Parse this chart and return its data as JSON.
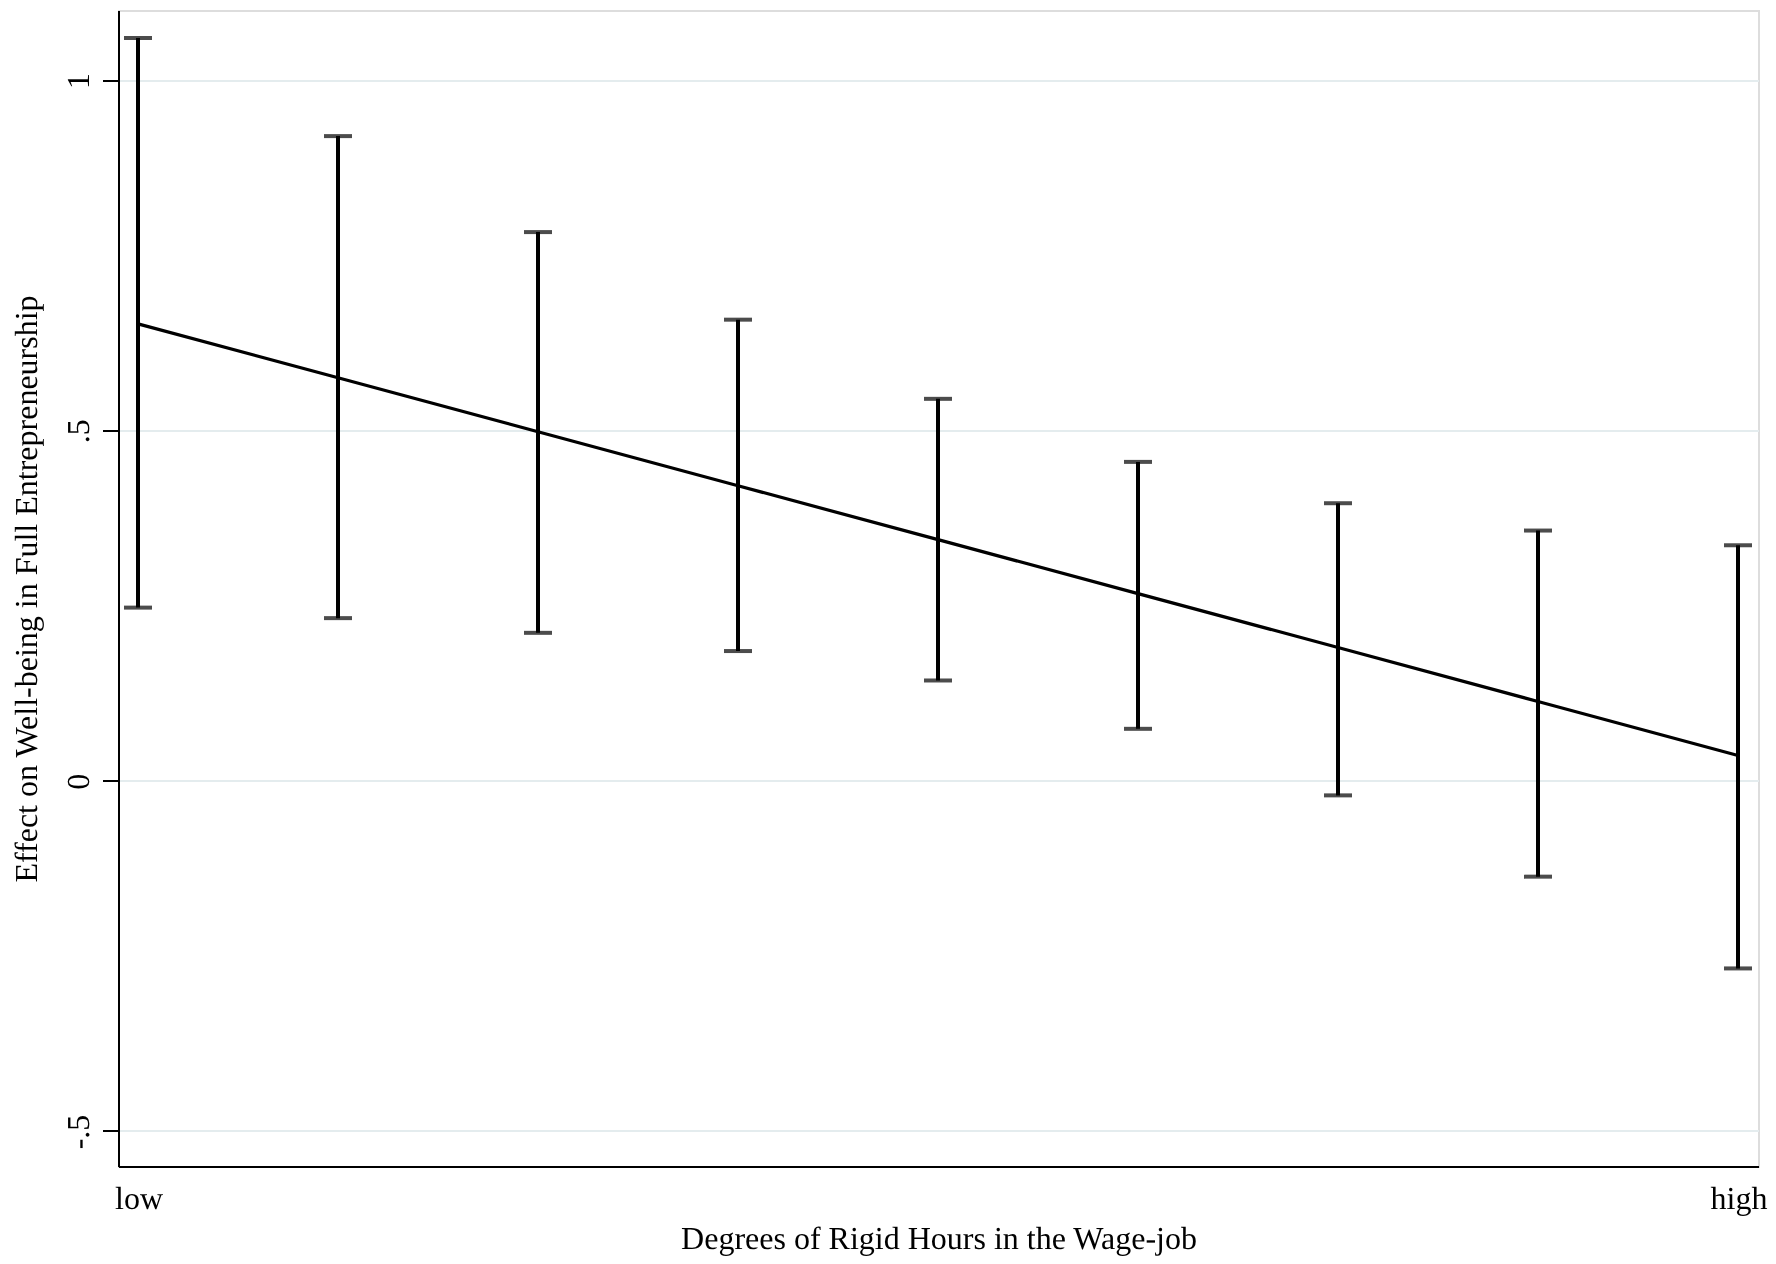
{
  "chart_data": {
    "type": "line",
    "xlabel": "Degrees of Rigid Hours in the Wage-job",
    "ylabel": "Effect on Well-being in Full Entrepreneurship",
    "categories": [
      "low",
      null,
      null,
      null,
      null,
      null,
      null,
      null,
      "high"
    ],
    "series": [
      {
        "color": "#000000",
        "values": [
          0.652,
          0.575,
          0.498,
          0.421,
          0.344,
          0.267,
          0.19,
          0.113,
          0.036
        ],
        "errors": [
          [
            0.247,
            1.06
          ],
          [
            0.232,
            0.92
          ],
          [
            0.211,
            0.783
          ],
          [
            0.185,
            0.658
          ],
          [
            0.143,
            0.545
          ],
          [
            0.074,
            0.455
          ],
          [
            -0.021,
            0.396
          ],
          [
            -0.137,
            0.357
          ],
          [
            -0.268,
            0.336
          ]
        ]
      }
    ],
    "ylim": [
      -0.55,
      1.1
    ],
    "yticks": [
      {
        "value": -0.5,
        "label": "-.5"
      },
      0,
      {
        "value": 0.5,
        "label": ".5"
      },
      1
    ],
    "grid": "y",
    "marker": "none",
    "line_style": "solid"
  }
}
